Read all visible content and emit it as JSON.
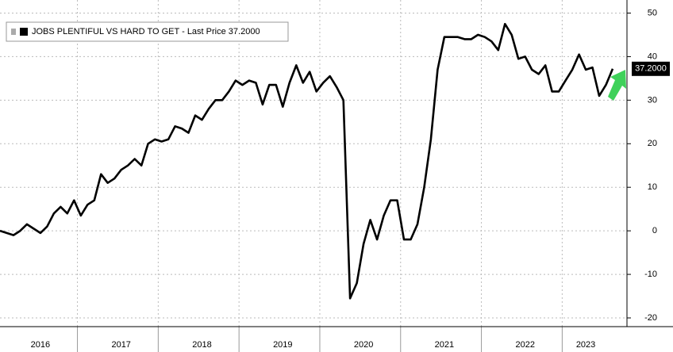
{
  "chart_data": {
    "type": "line",
    "series": [
      {
        "name": "JOBS PLENTIFUL VS HARD TO GET",
        "color": "#000000",
        "values": [
          0,
          -0.5,
          -1,
          0,
          1.5,
          0.5,
          -0.5,
          1,
          4,
          5.5,
          4,
          7,
          3.5,
          6,
          7,
          13,
          11,
          12,
          14,
          15,
          16.5,
          15,
          20,
          21,
          20.5,
          21,
          24,
          23.5,
          22.5,
          26.5,
          25.5,
          28,
          30,
          30,
          32,
          34.5,
          33.5,
          34.5,
          34,
          29,
          33.5,
          33.5,
          28.5,
          34,
          38,
          34,
          36.5,
          32,
          34,
          35.5,
          33,
          30,
          -15.5,
          -12,
          -3,
          2.5,
          -2,
          3.5,
          7,
          7,
          -2,
          -2,
          1.5,
          10,
          21,
          37,
          44.5,
          44.5,
          44.5,
          44,
          44,
          45,
          44.5,
          43.5,
          41.5,
          47.5,
          45,
          39.5,
          40,
          37,
          36,
          38,
          32,
          32,
          34.5,
          37,
          40.5,
          37,
          37.5,
          31,
          33.5,
          37.2
        ]
      }
    ],
    "categories": [
      null,
      null,
      null,
      null,
      null,
      null,
      "2016",
      null,
      null,
      null,
      null,
      null,
      null,
      null,
      null,
      null,
      null,
      null,
      "2017",
      null,
      null,
      null,
      null,
      null,
      null,
      null,
      null,
      null,
      null,
      null,
      "2018",
      null,
      null,
      null,
      null,
      null,
      null,
      null,
      null,
      null,
      null,
      null,
      "2019",
      null,
      null,
      null,
      null,
      null,
      null,
      null,
      null,
      null,
      null,
      null,
      "2020",
      null,
      null,
      null,
      null,
      null,
      null,
      null,
      null,
      null,
      null,
      null,
      "2021",
      null,
      null,
      null,
      null,
      null,
      null,
      null,
      null,
      null,
      null,
      null,
      "2022",
      null,
      null,
      null,
      null,
      null,
      null,
      null,
      null,
      "2023",
      null,
      null,
      null,
      null
    ],
    "last_price_caption": "- Last Price",
    "last_price": {
      "value": 37.2,
      "label": "37.2000"
    },
    "ylim": [
      -22,
      53
    ],
    "yticks": [
      -20,
      -10,
      0,
      10,
      20,
      30,
      40,
      50
    ],
    "grid": true
  }
}
